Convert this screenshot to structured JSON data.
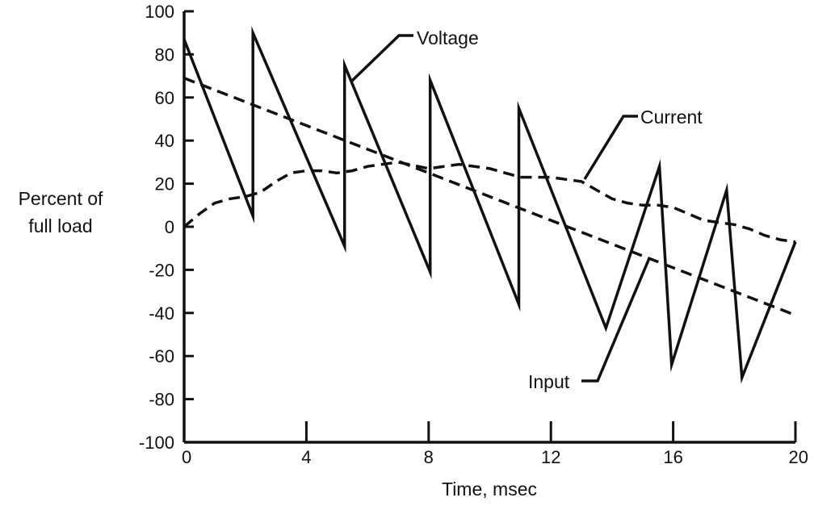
{
  "chart_data": {
    "type": "line",
    "xlabel": "Time, msec",
    "ylabel_lines": [
      "Percent of",
      "full load"
    ],
    "xlim": [
      0,
      20
    ],
    "ylim": [
      -100,
      100
    ],
    "x_ticks": [
      0,
      4,
      8,
      12,
      16,
      20
    ],
    "x_tick_labels": [
      "0",
      "4",
      "8",
      "12",
      "16",
      "20"
    ],
    "y_ticks": [
      100,
      80,
      60,
      40,
      20,
      0,
      -20,
      -40,
      -60,
      -80,
      -100
    ],
    "y_tick_labels": [
      "100",
      "80",
      "60",
      "40",
      "20",
      "0",
      "-20",
      "-40",
      "-60",
      "-80",
      "-100"
    ],
    "grid": false,
    "series": [
      {
        "name": "Voltage",
        "style": "solid",
        "x": [
          0,
          2.25,
          2.25,
          5.25,
          5.25,
          8.05,
          8.05,
          10.95,
          10.95,
          13.8,
          15.55,
          15.95,
          17.75,
          18.25,
          20
        ],
        "y": [
          87,
          5,
          90,
          -9,
          75,
          -21,
          68,
          -36,
          55,
          -47,
          28,
          -64,
          17,
          -70,
          -7
        ]
      },
      {
        "name": "Current",
        "style": "dashed",
        "x": [
          0,
          0.5,
          1,
          1.5,
          2,
          2.5,
          3,
          3.5,
          4,
          4.5,
          5,
          5.5,
          6,
          7,
          8,
          9,
          10,
          11,
          12,
          12.5,
          13,
          13.5,
          14,
          14.5,
          15,
          15.5,
          16,
          16.5,
          17,
          17.5,
          18,
          18.5,
          19,
          19.5,
          20
        ],
        "y": [
          0,
          6,
          11,
          13,
          14,
          16,
          21,
          25,
          26,
          26,
          25,
          26,
          28,
          30,
          27,
          29,
          27,
          23,
          23,
          22,
          21,
          17,
          13,
          11,
          10,
          10,
          9,
          6,
          3,
          2,
          1,
          -1,
          -4,
          -6,
          -7
        ]
      },
      {
        "name": "Input",
        "style": "dashed",
        "x": [
          0,
          20
        ],
        "y": [
          69,
          -41
        ]
      }
    ],
    "annotations": [
      {
        "text": "Voltage",
        "series": "Voltage"
      },
      {
        "text": "Current",
        "series": "Current"
      },
      {
        "text": "Input",
        "series": "Input"
      }
    ]
  }
}
